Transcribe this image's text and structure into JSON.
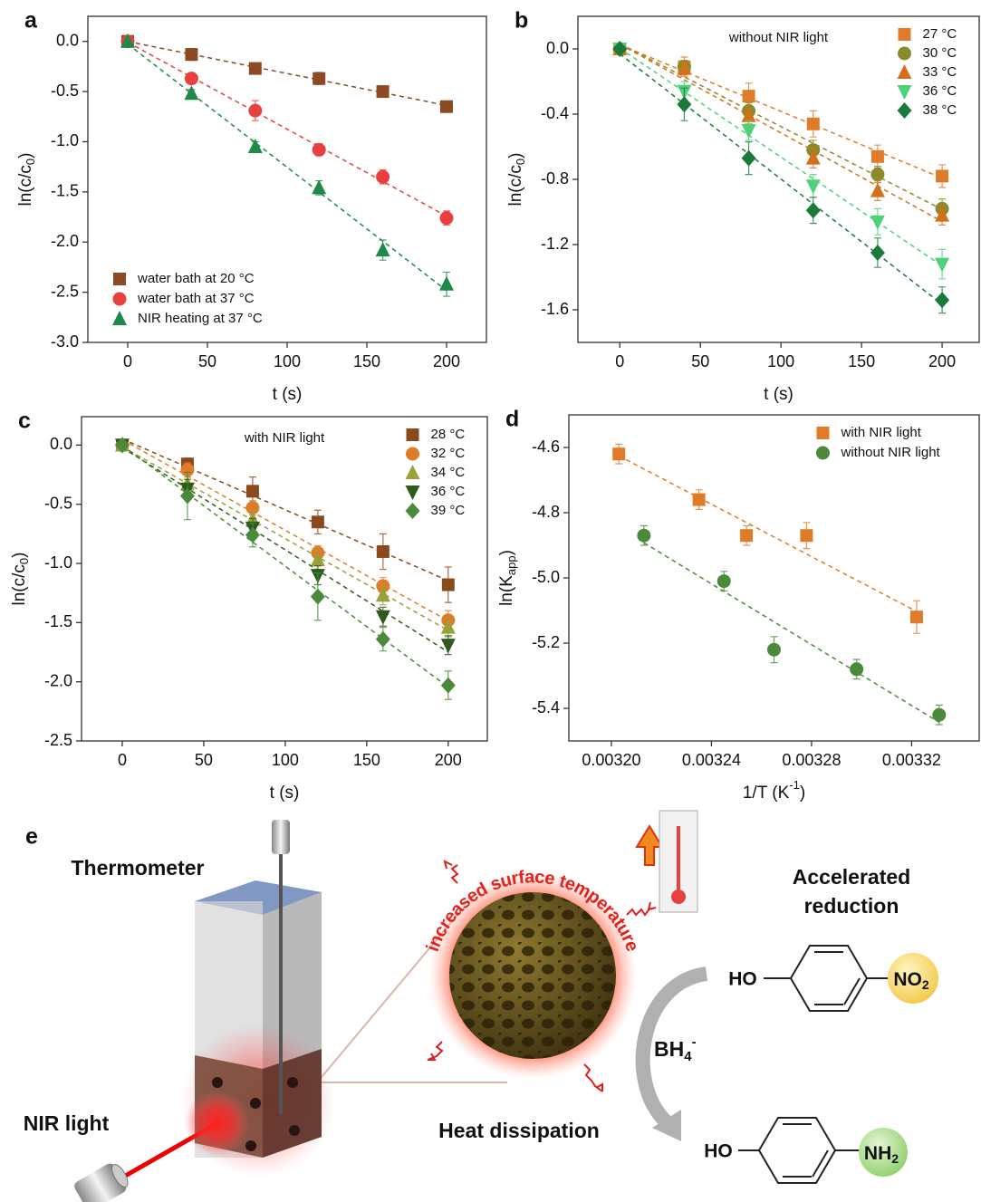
{
  "chart_data": [
    {
      "type": "scatter",
      "panel": "a",
      "xlabel": "t (s)",
      "ylabel": {
        "base": "ln(c/c",
        "sub": "0",
        "tail": ")"
      },
      "x": [
        0,
        40,
        80,
        120,
        160,
        200
      ],
      "xlim": [
        -25,
        225
      ],
      "xticks": [
        0,
        50,
        100,
        150,
        200
      ],
      "ylim": [
        -3,
        0.25
      ],
      "yticks": [
        {
          "value": -3,
          "label": "-3.0"
        },
        -2.5,
        {
          "value": -2,
          "label": "-2.0"
        },
        -1.5,
        {
          "value": -1,
          "label": "-1.0"
        },
        -0.5,
        {
          "value": 0,
          "label": "0.0"
        }
      ],
      "legend": "lower left",
      "fit_lines": true,
      "series": [
        {
          "name": "water bath at 20 °C",
          "color": "#8b4a22",
          "marker": "square",
          "values": [
            0,
            -0.13,
            -0.27,
            -0.37,
            -0.5,
            -0.65
          ],
          "errors": [
            0.02,
            0.06,
            0.03,
            0.06,
            0.03,
            0.03
          ]
        },
        {
          "name": "water bath at 37 °C",
          "color": "#e8403f",
          "marker": "circle",
          "values": [
            0,
            -0.37,
            -0.69,
            -1.08,
            -1.35,
            -1.76
          ],
          "errors": [
            0.02,
            0.05,
            0.1,
            0.06,
            0.07,
            0.07
          ]
        },
        {
          "name": "NIR  heating at 37 °C",
          "color": "#1e8a4a",
          "marker": "triangle",
          "values": [
            0,
            -0.52,
            -1.05,
            -1.46,
            -2.08,
            -2.42
          ],
          "errors": [
            0.02,
            0.04,
            0.05,
            0.07,
            0.1,
            0.12
          ]
        }
      ]
    },
    {
      "type": "scatter",
      "panel": "b",
      "xlabel": "t (s)",
      "ylabel": {
        "base": "ln(c/c",
        "sub": "0",
        "tail": ")"
      },
      "annotation": "without NIR light",
      "x": [
        0,
        40,
        80,
        120,
        160,
        200
      ],
      "xlim": [
        -26,
        223
      ],
      "xticks": [
        0,
        50,
        100,
        150,
        200
      ],
      "ylim": [
        -1.8,
        0.2
      ],
      "yticks": [
        -1.6,
        -1.2,
        -0.8,
        -0.4,
        {
          "value": 0,
          "label": "0.0"
        }
      ],
      "legend": "upper right",
      "fit_lines": true,
      "series": [
        {
          "name": "27 °C",
          "color": "#e07b2a",
          "marker": "square",
          "values": [
            0,
            -0.11,
            -0.29,
            -0.46,
            -0.66,
            -0.78
          ],
          "errors": [
            0.01,
            0.06,
            0.08,
            0.08,
            0.07,
            0.07
          ]
        },
        {
          "name": "30 °C",
          "color": "#8a8a2a",
          "marker": "circle",
          "values": [
            0,
            -0.11,
            -0.38,
            -0.62,
            -0.77,
            -0.98
          ],
          "errors": [
            0.01,
            0.04,
            0.05,
            0.06,
            0.05,
            0.06
          ]
        },
        {
          "name": "33 °C",
          "color": "#d4701c",
          "marker": "triangle",
          "values": [
            0,
            -0.12,
            -0.41,
            -0.67,
            -0.87,
            -1.02
          ],
          "errors": [
            0.01,
            0.04,
            0.05,
            0.06,
            0.06,
            0.06
          ]
        },
        {
          "name": "36 °C",
          "color": "#4fd17a",
          "marker": "triangle-down",
          "values": [
            0,
            -0.26,
            -0.5,
            -0.84,
            -1.06,
            -1.32
          ],
          "errors": [
            0.01,
            0.06,
            0.06,
            0.07,
            0.08,
            0.09
          ]
        },
        {
          "name": "38 °C",
          "color": "#1a7a3a",
          "marker": "diamond",
          "values": [
            0,
            -0.34,
            -0.67,
            -0.99,
            -1.25,
            -1.54
          ],
          "errors": [
            0.01,
            0.1,
            0.1,
            0.08,
            0.09,
            0.08
          ]
        }
      ]
    },
    {
      "type": "scatter",
      "panel": "c",
      "xlabel": "t (s)",
      "ylabel": {
        "base": "ln(c/c",
        "sub": "0",
        "tail": ")"
      },
      "annotation": "with NIR light",
      "x": [
        0,
        40,
        80,
        120,
        160,
        200
      ],
      "xlim": [
        -25,
        224
      ],
      "xticks": [
        0,
        50,
        100,
        150,
        200
      ],
      "ylim": [
        -2.5,
        0.24
      ],
      "yticks": [
        -2.5,
        {
          "value": -2,
          "label": "-2.0"
        },
        -1.5,
        {
          "value": -1,
          "label": "-1.0"
        },
        -0.5,
        {
          "value": 0,
          "label": "0.0"
        }
      ],
      "legend": "upper right",
      "fit_lines": true,
      "series": [
        {
          "name": "28 °C",
          "color": "#8b4a1e",
          "marker": "square",
          "values": [
            0,
            -0.16,
            -0.39,
            -0.65,
            -0.9,
            -1.18
          ],
          "errors": [
            0.01,
            0.05,
            0.12,
            0.1,
            0.15,
            0.15
          ]
        },
        {
          "name": "32 °C",
          "color": "#e07b2a",
          "marker": "circle",
          "values": [
            0,
            -0.21,
            -0.53,
            -0.91,
            -1.19,
            -1.48
          ],
          "errors": [
            0.01,
            0.06,
            0.06,
            0.06,
            0.07,
            0.08
          ]
        },
        {
          "name": "34 °C",
          "color": "#9aa03a",
          "marker": "triangle",
          "values": [
            0,
            -0.33,
            -0.63,
            -0.97,
            -1.27,
            -1.54
          ],
          "errors": [
            0.01,
            0.08,
            0.08,
            0.08,
            0.08,
            0.08
          ]
        },
        {
          "name": "36 °C",
          "color": "#2f5a1c",
          "marker": "triangle-down",
          "values": [
            0,
            -0.37,
            -0.7,
            -1.1,
            -1.45,
            -1.69
          ],
          "errors": [
            0.01,
            0.08,
            0.08,
            0.08,
            0.08,
            0.08
          ]
        },
        {
          "name": "39 °C",
          "color": "#4a8a3a",
          "marker": "diamond",
          "values": [
            0,
            -0.43,
            -0.76,
            -1.28,
            -1.64,
            -2.03
          ],
          "errors": [
            0.01,
            0.2,
            0.1,
            0.2,
            0.1,
            0.12
          ]
        }
      ]
    },
    {
      "type": "scatter",
      "panel": "d",
      "xlabel": {
        "base": "1/T (K",
        "sup": "-1",
        "tail": ")"
      },
      "ylabel": {
        "base": "ln(K",
        "sub": "app",
        "tail": ")"
      },
      "xlim": [
        0.003183,
        0.003347
      ],
      "xticks": [
        {
          "value": 0.0032,
          "label": "0.00320"
        },
        {
          "value": 0.00324,
          "label": "0.00324"
        },
        {
          "value": 0.00328,
          "label": "0.00328"
        },
        {
          "value": 0.00332,
          "label": "0.00332"
        }
      ],
      "ylim": [
        -5.5,
        -4.5
      ],
      "yticks": [
        -5.4,
        -5.2,
        {
          "value": -5,
          "label": "-5.0"
        },
        -4.8,
        -4.6
      ],
      "legend": "upper right",
      "fit_lines": true,
      "series": [
        {
          "name": "with NIR light",
          "color": "#e07b2a",
          "marker": "square",
          "x": [
            0.003203,
            0.003235,
            0.003254,
            0.003278,
            0.003322
          ],
          "values": [
            -4.62,
            -4.76,
            -4.87,
            -4.87,
            -5.12
          ],
          "errors": [
            0.03,
            0.03,
            0.03,
            0.04,
            0.05
          ]
        },
        {
          "name": "without NIR light",
          "color": "#4a8a3a",
          "marker": "circle",
          "x": [
            0.003213,
            0.003245,
            0.003265,
            0.003298,
            0.003331
          ],
          "values": [
            -4.87,
            -5.01,
            -5.22,
            -5.28,
            -5.42
          ],
          "errors": [
            0.03,
            0.03,
            0.04,
            0.03,
            0.03
          ]
        }
      ]
    }
  ],
  "diagram": {
    "panel": "e",
    "thermometer": "Thermometer",
    "nir_light": "NIR light",
    "surface_label": "increased surface temperature",
    "accelerated": [
      "Accelerated",
      "reduction"
    ],
    "reductant": {
      "base": "BH",
      "sub": "4",
      "sup": "-"
    },
    "reactant": {
      "left": "HO",
      "right": {
        "base": "NO",
        "sub": "2"
      }
    },
    "product": {
      "left": "HO",
      "right": {
        "base": "NH",
        "sub": "2"
      }
    },
    "heat": "Heat dissipation"
  }
}
